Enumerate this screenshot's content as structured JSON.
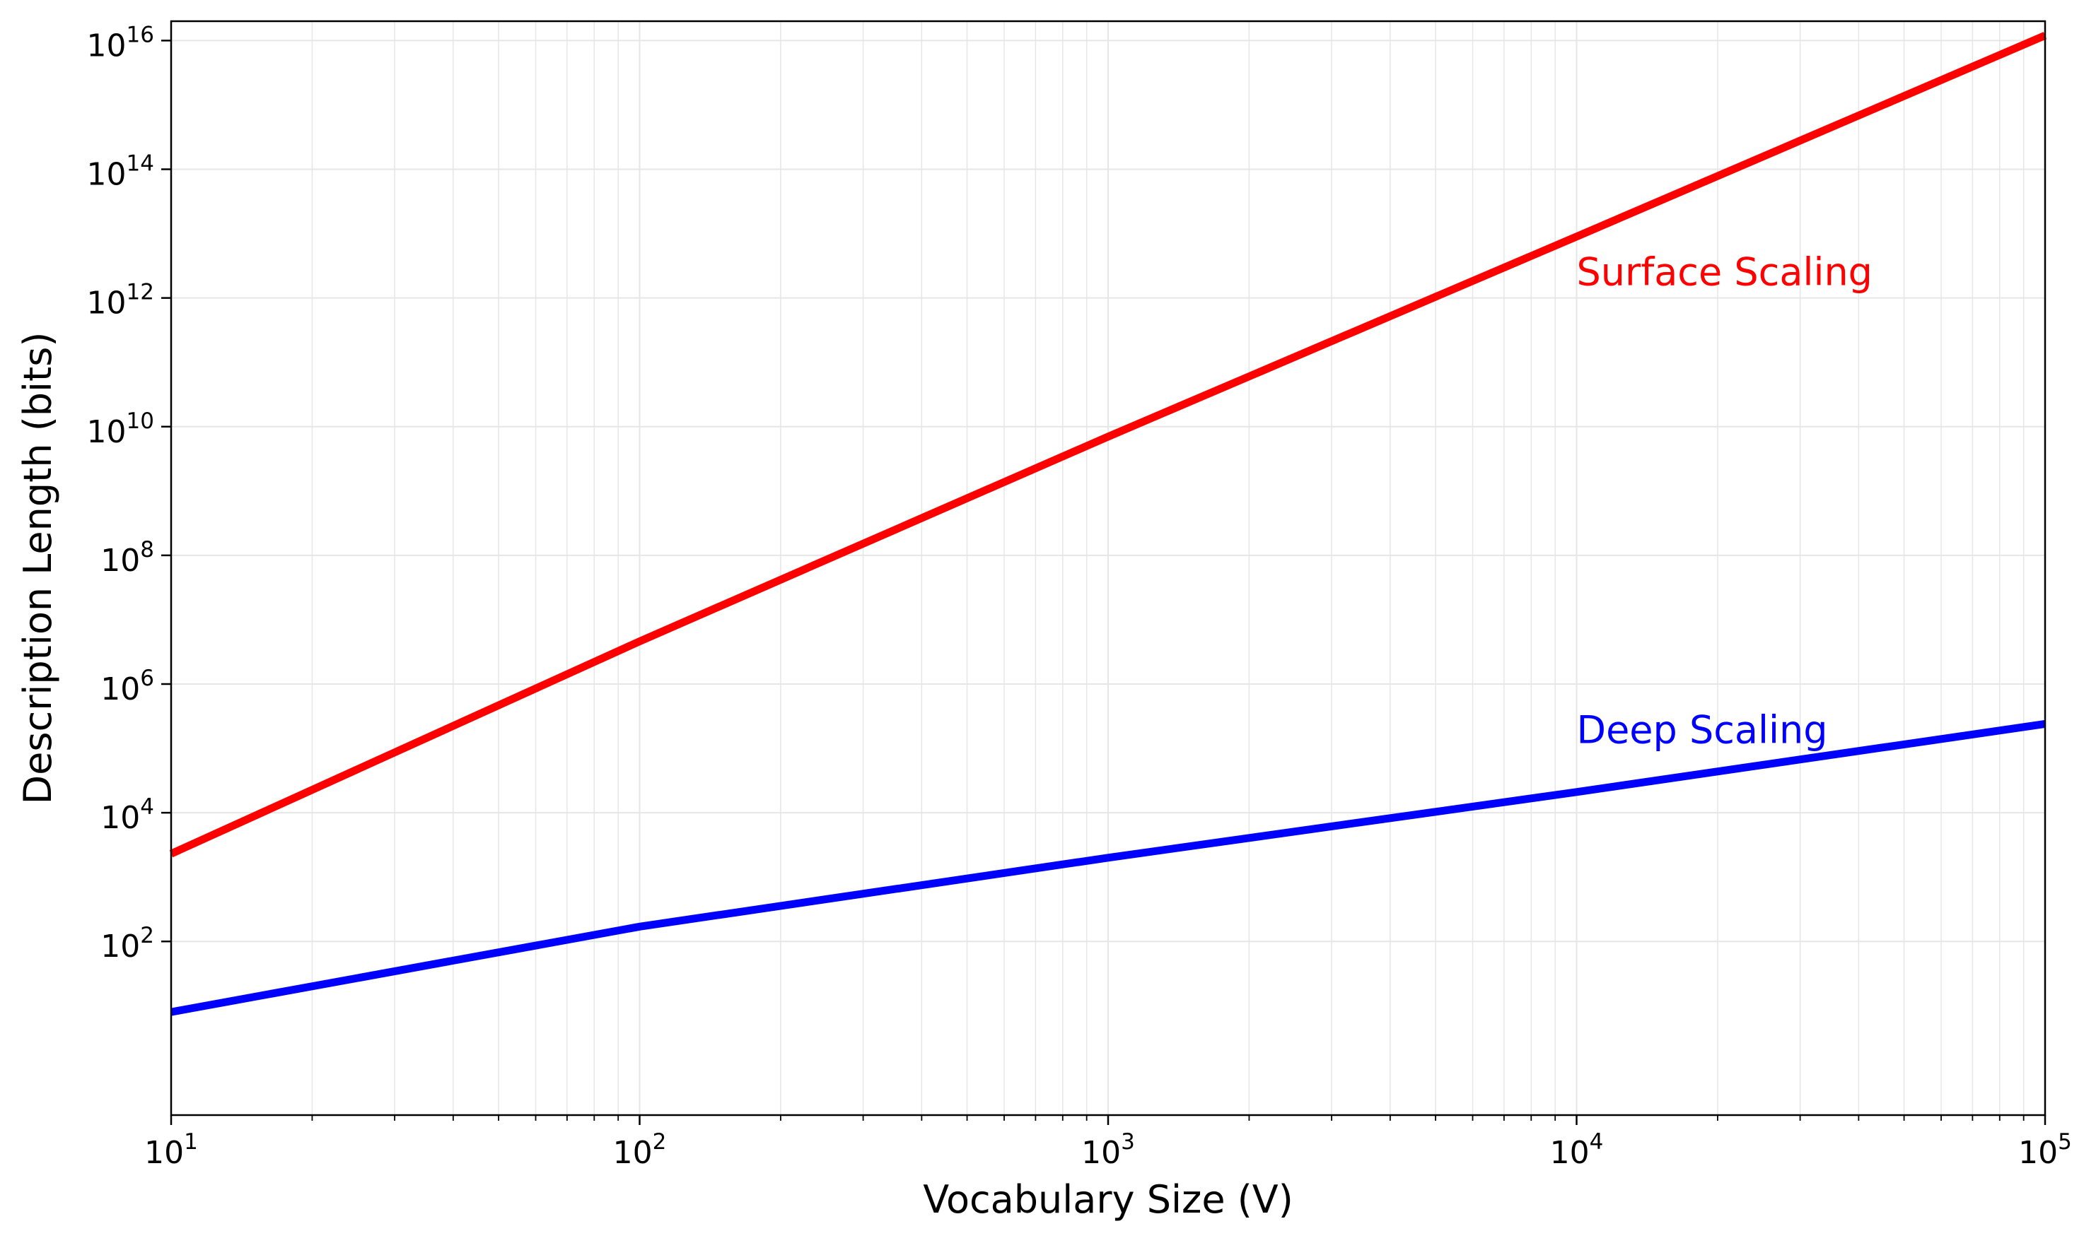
{
  "chart_data": {
    "type": "line",
    "title": "",
    "xlabel": "Vocabulary Size (V)",
    "ylabel": "Description Length (bits)",
    "xscale": "log",
    "yscale": "log",
    "xlim": [
      10,
      100000
    ],
    "ylim": [
      0.2,
      2e+16
    ],
    "grid": true,
    "legend": "none",
    "x_ticks": [
      {
        "base": "10",
        "exp": "1",
        "value": 10
      },
      {
        "base": "10",
        "exp": "2",
        "value": 100
      },
      {
        "base": "10",
        "exp": "3",
        "value": 1000
      },
      {
        "base": "10",
        "exp": "4",
        "value": 10000
      },
      {
        "base": "10",
        "exp": "5",
        "value": 100000
      }
    ],
    "y_ticks": [
      {
        "base": "10",
        "exp": "2",
        "value": 100
      },
      {
        "base": "10",
        "exp": "4",
        "value": 10000
      },
      {
        "base": "10",
        "exp": "6",
        "value": 1000000
      },
      {
        "base": "10",
        "exp": "8",
        "value": 100000000
      },
      {
        "base": "10",
        "exp": "10",
        "value": 10000000000
      },
      {
        "base": "10",
        "exp": "12",
        "value": 1000000000000
      },
      {
        "base": "10",
        "exp": "14",
        "value": 100000000000000
      },
      {
        "base": "10",
        "exp": "16",
        "value": 10000000000000000
      }
    ],
    "series": [
      {
        "color": "#ff0000",
        "x": [
          10,
          100,
          1000,
          10000,
          100000
        ],
        "y": [
          2300,
          4600000,
          7000000000,
          9000000000000,
          12000000000000000
        ]
      },
      {
        "color": "#0000ff",
        "x": [
          10,
          100,
          1000,
          10000,
          100000
        ],
        "y": [
          8,
          170,
          2000,
          21000,
          240000
        ]
      }
    ],
    "annotations": [
      {
        "text": "Surface Scaling",
        "x": 10000,
        "y": 2500000000000,
        "color": "#ff0000"
      },
      {
        "text": "Deep Scaling",
        "x": 10000,
        "y": 190000,
        "color": "#0000ff"
      }
    ]
  }
}
